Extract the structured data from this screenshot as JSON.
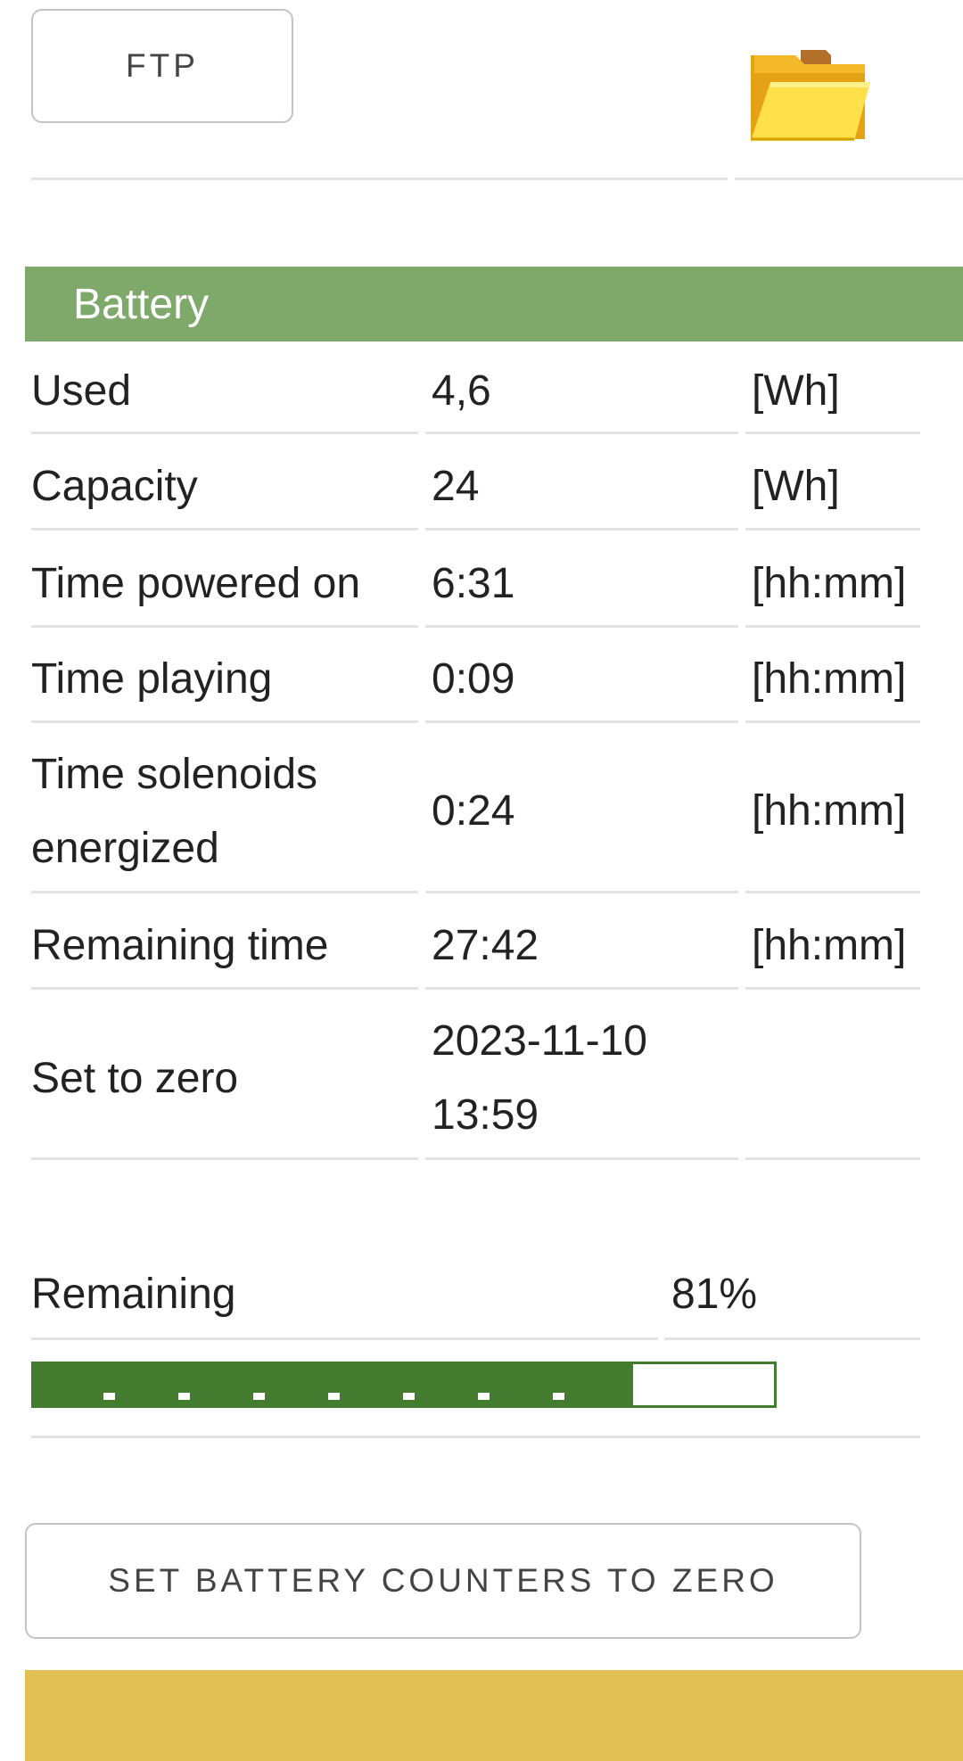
{
  "toolbar": {
    "ftp_label": "FTP",
    "folder_icon": "folder-icon"
  },
  "battery": {
    "title": "Battery",
    "rows": [
      {
        "label": "Used",
        "value": "4,6",
        "unit": "[Wh]"
      },
      {
        "label": "Capacity",
        "value": "24",
        "unit": "[Wh]"
      },
      {
        "label": "Time powered on",
        "value": "6:31",
        "unit": "[hh:mm]"
      },
      {
        "label": "Time playing",
        "value": "0:09",
        "unit": "[hh:mm]"
      },
      {
        "label": "Time solenoids energized",
        "value": "0:24",
        "unit": "[hh:mm]"
      },
      {
        "label": "Remaining time",
        "value": "27:42",
        "unit": "[hh:mm]"
      },
      {
        "label": "Set to zero",
        "value": "2023-11-10 13:59",
        "unit": ""
      }
    ],
    "remaining_label": "Remaining",
    "remaining_value": "81%",
    "remaining_fraction": 0.81,
    "reset_label": "SET BATTERY COUNTERS TO ZERO"
  },
  "colors": {
    "header_green": "#7ea96b",
    "progress_green": "#437c2e",
    "footer_yellow": "#e0bf55"
  }
}
